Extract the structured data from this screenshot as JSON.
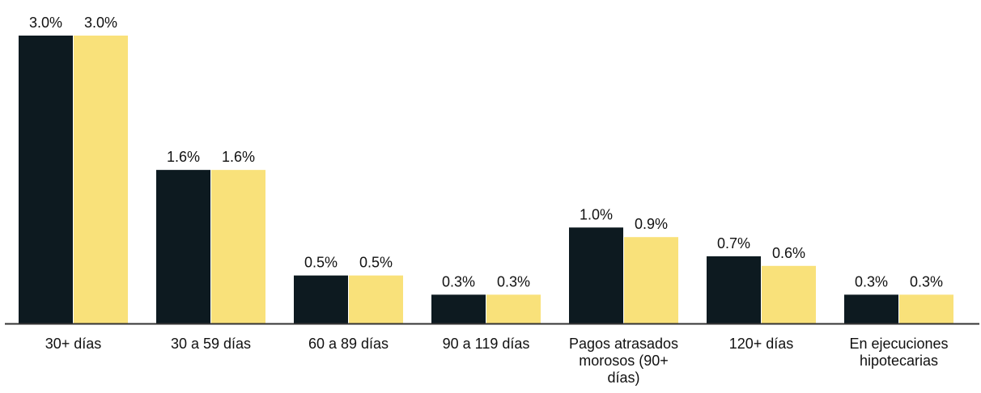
{
  "chart_data": {
    "type": "bar",
    "categories": [
      "30+ días",
      "30 a 59 días",
      "60 a  89 días",
      "90 a 119 días",
      "Pagos atrasados morosos (90+ días)",
      "120+ días",
      "En ejecuciones hipotecarias"
    ],
    "category_lines": [
      [
        "30+ días"
      ],
      [
        "30 a 59 días"
      ],
      [
        "60 a  89 días"
      ],
      [
        "90 a 119 días"
      ],
      [
        "Pagos atrasados",
        "morosos (90+",
        "días)"
      ],
      [
        "120+ días"
      ],
      [
        "En ejecuciones",
        "hipotecarias"
      ]
    ],
    "series": [
      {
        "color": "#0d1a20",
        "values": [
          3.0,
          1.6,
          0.5,
          0.3,
          1.0,
          0.7,
          0.3
        ],
        "labels": [
          "3.0%",
          "1.6%",
          "0.5%",
          "0.3%",
          "1.0%",
          "0.7%",
          "0.3%"
        ]
      },
      {
        "color": "#f9e17a",
        "values": [
          3.0,
          1.6,
          0.5,
          0.3,
          0.9,
          0.6,
          0.3
        ],
        "labels": [
          "3.0%",
          "1.6%",
          "0.5%",
          "0.3%",
          "0.9%",
          "0.6%",
          "0.3%"
        ]
      }
    ],
    "ylim": [
      0,
      3.0
    ],
    "grid": false,
    "legend": "none",
    "axis_color": "#333333"
  }
}
